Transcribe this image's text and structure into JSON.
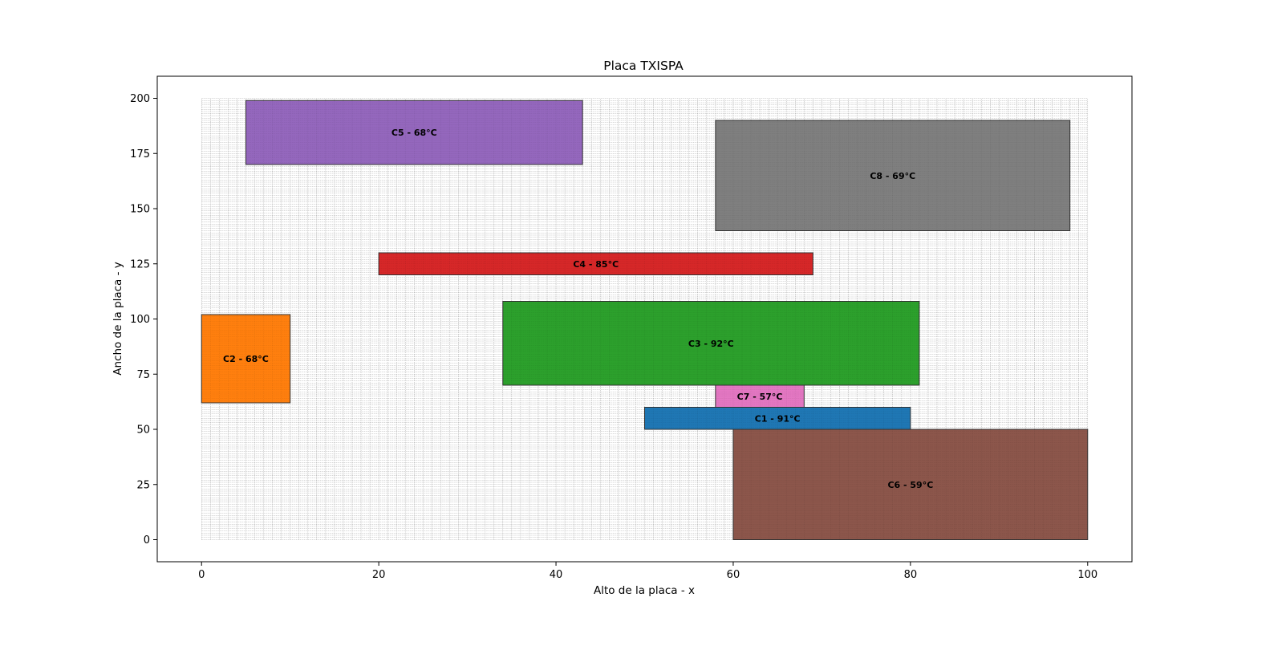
{
  "chart_data": {
    "type": "rectangles",
    "title": "Placa TXISPA",
    "xlabel": "Alto de la placa - x",
    "ylabel": "Ancho de la placa - y",
    "xlim": [
      -5,
      105
    ],
    "ylim": [
      -10,
      210
    ],
    "xticks": [
      0,
      20,
      40,
      60,
      80,
      100
    ],
    "yticks": [
      0,
      25,
      50,
      75,
      100,
      125,
      150,
      175,
      200
    ],
    "board": {
      "x": [
        0,
        100
      ],
      "y": [
        0,
        200
      ],
      "grid_step": 1,
      "grid_color": "#999999"
    },
    "components": [
      {
        "name": "C1",
        "label": "C1 - 91°C",
        "x": 50,
        "y": 50,
        "width": 30,
        "height": 10,
        "color": "#1f77b4"
      },
      {
        "name": "C2",
        "label": "C2 - 68°C",
        "x": 0,
        "y": 62,
        "width": 10,
        "height": 40,
        "color": "#ff7f0e"
      },
      {
        "name": "C3",
        "label": "C3 - 92°C",
        "x": 34,
        "y": 70,
        "width": 47,
        "height": 38,
        "color": "#2ca02c"
      },
      {
        "name": "C4",
        "label": "C4 - 85°C",
        "x": 20,
        "y": 120,
        "width": 49,
        "height": 10,
        "color": "#d62728"
      },
      {
        "name": "C5",
        "label": "C5 - 68°C",
        "x": 5,
        "y": 170,
        "width": 38,
        "height": 29,
        "color": "#9467bd"
      },
      {
        "name": "C6",
        "label": "C6 - 59°C",
        "x": 60,
        "y": 0,
        "width": 40,
        "height": 50,
        "color": "#8c564b"
      },
      {
        "name": "C7",
        "label": "C7 - 57°C",
        "x": 58,
        "y": 60,
        "width": 10,
        "height": 10,
        "color": "#e377c2"
      },
      {
        "name": "C8",
        "label": "C8 - 69°C",
        "x": 58,
        "y": 140,
        "width": 40,
        "height": 50,
        "color": "#7f7f7f"
      }
    ]
  }
}
